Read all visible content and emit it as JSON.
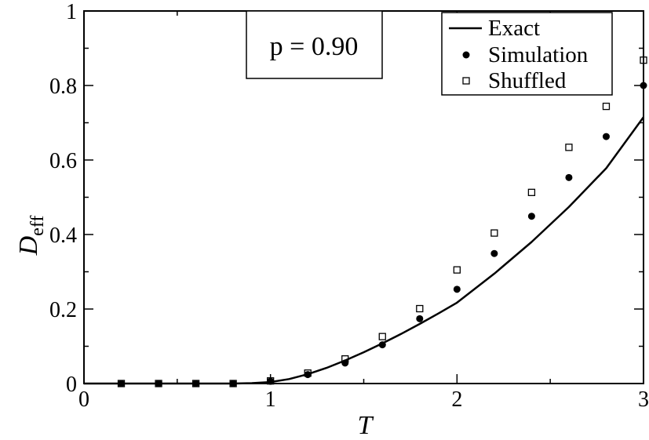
{
  "chart_data": {
    "type": "scatter",
    "xlabel": "T",
    "ylabel": {
      "main": "D",
      "sub": "eff"
    },
    "xlim": [
      0,
      3
    ],
    "ylim": [
      0,
      1
    ],
    "x_ticks": [
      0,
      1,
      2,
      3
    ],
    "x_tick_labels": [
      "0",
      "1",
      "2",
      "3"
    ],
    "y_ticks": [
      0,
      0.2,
      0.4,
      0.6,
      0.8,
      1
    ],
    "y_tick_labels": [
      "0",
      "0.2",
      "0.4",
      "0.6",
      "0.8",
      "1"
    ],
    "grid": false,
    "legend_position": "top-right",
    "annotation": "p = 0.90",
    "series": [
      {
        "name": "Exact",
        "kind": "line",
        "color": "#000000",
        "x": [
          0,
          0.2,
          0.4,
          0.6,
          0.8,
          0.9,
          1.0,
          1.1,
          1.2,
          1.3,
          1.4,
          1.5,
          1.6,
          1.7,
          1.8,
          1.9,
          2.0,
          2.2,
          2.4,
          2.6,
          2.8,
          3.0
        ],
        "y": [
          0,
          0,
          0,
          0,
          0,
          0.001,
          0.004,
          0.012,
          0.025,
          0.042,
          0.062,
          0.084,
          0.108,
          0.133,
          0.16,
          0.188,
          0.217,
          0.295,
          0.38,
          0.474,
          0.578,
          0.715
        ]
      },
      {
        "name": "Simulation",
        "kind": "marker",
        "marker": "filled-circle",
        "color": "#000000",
        "x": [
          0.2,
          0.4,
          0.6,
          0.8,
          1.0,
          1.2,
          1.4,
          1.6,
          1.8,
          2.0,
          2.2,
          2.4,
          2.6,
          2.8,
          3.0
        ],
        "y": [
          0,
          0,
          0,
          0,
          0.006,
          0.024,
          0.055,
          0.104,
          0.174,
          0.253,
          0.349,
          0.449,
          0.553,
          0.663,
          0.8
        ]
      },
      {
        "name": "Shuffled",
        "kind": "marker",
        "marker": "open-square",
        "color": "#000000",
        "x": [
          0.2,
          0.4,
          0.6,
          0.8,
          1.0,
          1.2,
          1.4,
          1.6,
          1.8,
          2.0,
          2.2,
          2.4,
          2.6,
          2.8,
          3.0
        ],
        "y": [
          0,
          0,
          0,
          0,
          0.007,
          0.028,
          0.066,
          0.126,
          0.201,
          0.305,
          0.404,
          0.513,
          0.634,
          0.744,
          0.868
        ]
      }
    ]
  }
}
